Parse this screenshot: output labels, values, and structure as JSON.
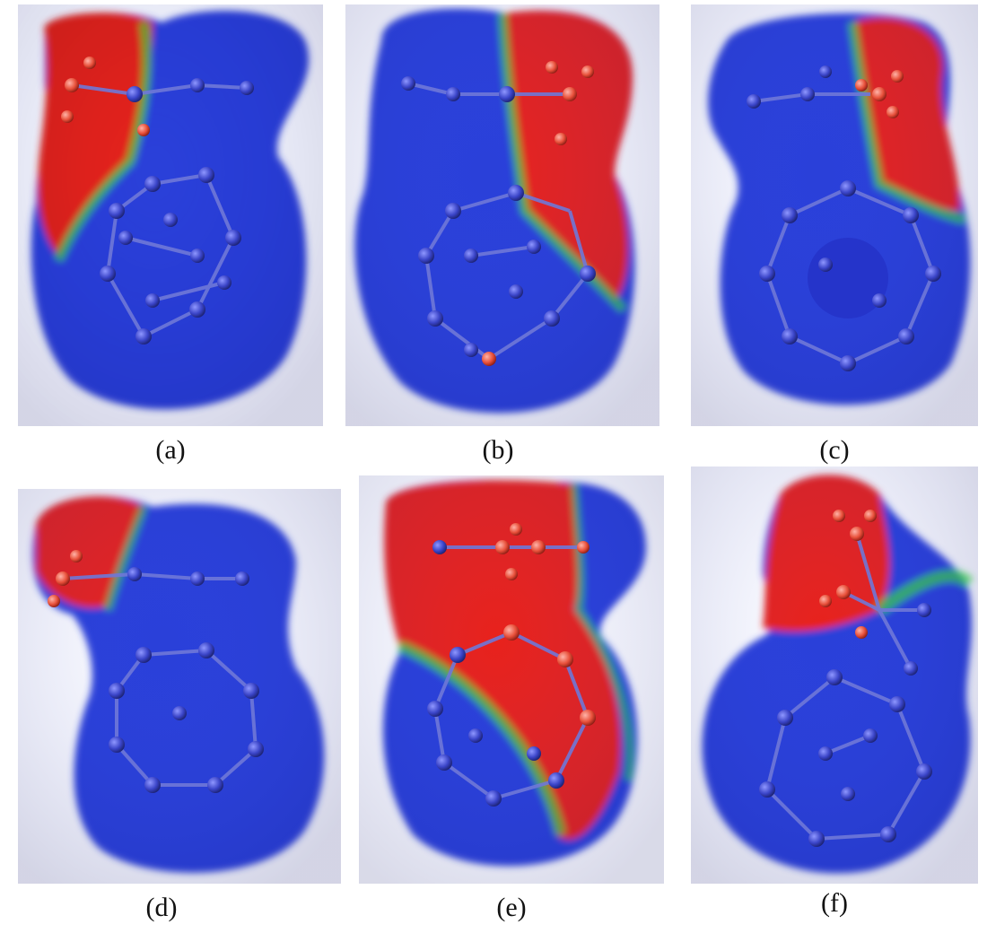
{
  "figure": {
    "panels": [
      {
        "caption": "(a)"
      },
      {
        "caption": "(b)"
      },
      {
        "caption": "(c)"
      },
      {
        "caption": "(d)"
      },
      {
        "caption": "(e)"
      },
      {
        "caption": "(f)"
      }
    ]
  },
  "colors": {
    "negative_potential": "#e8201c",
    "positive_potential": "#2b3fd9",
    "neutral_potential": "#39e03a",
    "atom": "#3a44c8",
    "bond": "#6f78d8",
    "background": "#ffffff",
    "caption_text": "#111111"
  }
}
